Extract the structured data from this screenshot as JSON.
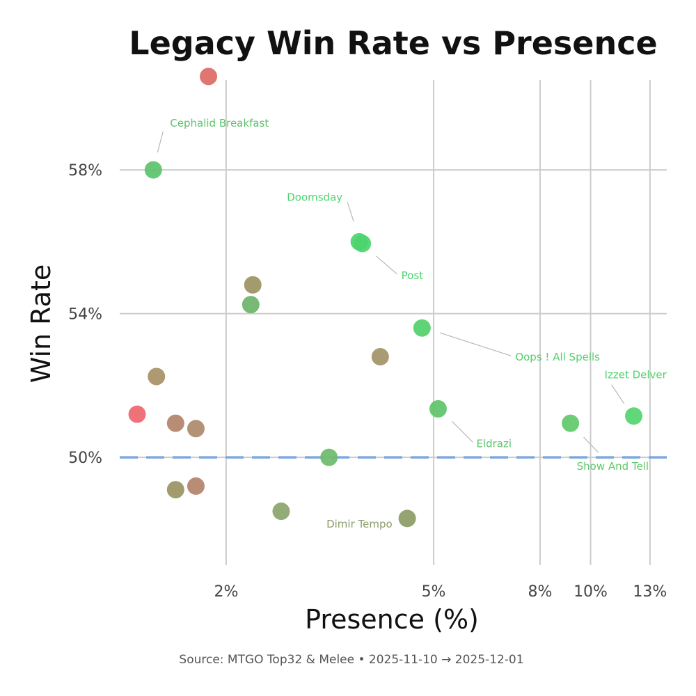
{
  "chart_data": {
    "type": "scatter",
    "title": "Legacy Win Rate vs Presence",
    "xlabel": "Presence (%)",
    "ylabel": "Win Rate",
    "x_scale": "log",
    "xlim": [
      1.25,
      14
    ],
    "ylim": [
      47.0,
      60.5
    ],
    "x_ticks": [
      {
        "value": 2,
        "label": "2%"
      },
      {
        "value": 5,
        "label": "5%"
      },
      {
        "value": 8,
        "label": "8%"
      },
      {
        "value": 10,
        "label": "10%"
      },
      {
        "value": 13,
        "label": "13%"
      }
    ],
    "y_ticks": [
      {
        "value": 50,
        "label": "50%"
      },
      {
        "value": 54,
        "label": "54%"
      },
      {
        "value": 58,
        "label": "58%"
      }
    ],
    "reference_line": {
      "y": 50,
      "style": "dashed",
      "color": "#7ea6e0"
    },
    "grid": true,
    "caption": "Source: MTGO Top32 & Melee  •  2025-11-10 → 2025-12-01",
    "points": [
      {
        "x": 1.85,
        "y": 60.6,
        "color": "#dd6a66",
        "label": ""
      },
      {
        "x": 1.45,
        "y": 58.0,
        "color": "#5cc26c",
        "label": "Cephalid Breakfast"
      },
      {
        "x": 3.6,
        "y": 56.0,
        "color": "#4cd46d",
        "label": "Doomsday"
      },
      {
        "x": 3.65,
        "y": 55.95,
        "color": "#4cd46d",
        "label": "Post"
      },
      {
        "x": 2.25,
        "y": 54.8,
        "color": "#9a9262",
        "label": ""
      },
      {
        "x": 2.23,
        "y": 54.25,
        "color": "#6cb36a",
        "label": ""
      },
      {
        "x": 4.75,
        "y": 53.6,
        "color": "#52cf6a",
        "label": "Oops ! All Spells"
      },
      {
        "x": 3.95,
        "y": 52.8,
        "color": "#a29466",
        "label": ""
      },
      {
        "x": 1.47,
        "y": 52.25,
        "color": "#a89066",
        "label": ""
      },
      {
        "x": 5.1,
        "y": 51.35,
        "color": "#5ec46a",
        "label": "Eldrazi"
      },
      {
        "x": 12.1,
        "y": 51.15,
        "color": "#52d46d",
        "label": "Izzet Delver"
      },
      {
        "x": 1.35,
        "y": 51.2,
        "color": "#ee6670",
        "label": ""
      },
      {
        "x": 1.6,
        "y": 50.95,
        "color": "#b3826a",
        "label": ""
      },
      {
        "x": 1.75,
        "y": 50.8,
        "color": "#ad8a6a",
        "label": ""
      },
      {
        "x": 9.15,
        "y": 50.95,
        "color": "#5fc96a",
        "label": "Show And Tell"
      },
      {
        "x": 3.15,
        "y": 50.0,
        "color": "#6cbb6a",
        "label": ""
      },
      {
        "x": 1.6,
        "y": 49.1,
        "color": "#9a9262",
        "label": ""
      },
      {
        "x": 1.75,
        "y": 49.2,
        "color": "#b3826a",
        "label": ""
      },
      {
        "x": 2.55,
        "y": 48.5,
        "color": "#8aa46a",
        "label": ""
      },
      {
        "x": 4.45,
        "y": 48.3,
        "color": "#8a9c66",
        "label": "Dimir Tempo"
      }
    ]
  }
}
